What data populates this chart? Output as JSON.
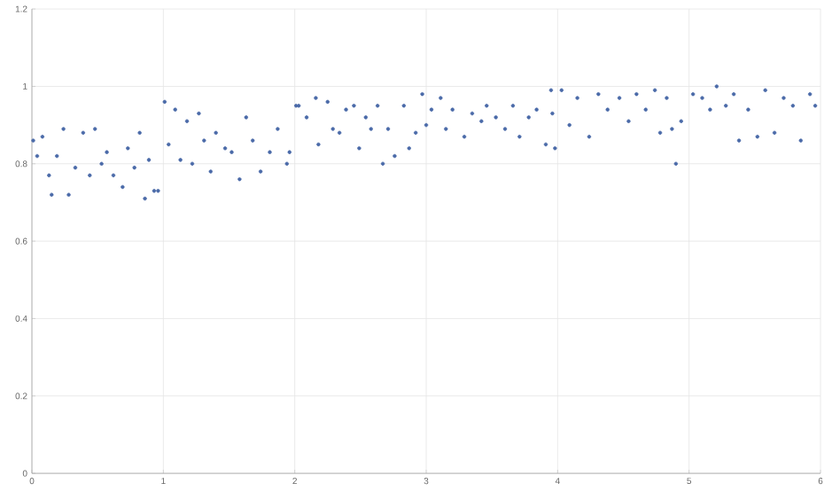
{
  "chart_data": {
    "type": "scatter",
    "color": "#4a6aa8",
    "grid": true,
    "xlim": [
      0,
      6
    ],
    "xticks": [
      0,
      1,
      2,
      3,
      4,
      5,
      6
    ],
    "ylim": [
      0,
      1.2
    ],
    "yticks": [
      0,
      0.2,
      0.4,
      0.6,
      0.8,
      1,
      1.2
    ],
    "x": [
      0.01,
      0.04,
      0.08,
      0.13,
      0.15,
      0.19,
      0.24,
      0.28,
      0.33,
      0.39,
      0.44,
      0.48,
      0.53,
      0.57,
      0.62,
      0.69,
      0.73,
      0.78,
      0.82,
      0.86,
      0.89,
      0.93,
      0.96,
      1.01,
      1.04,
      1.09,
      1.13,
      1.18,
      1.22,
      1.27,
      1.31,
      1.36,
      1.4,
      1.47,
      1.52,
      1.58,
      1.63,
      1.68,
      1.74,
      1.81,
      1.87,
      1.94,
      1.96,
      2.01,
      2.03,
      2.09,
      2.16,
      2.18,
      2.25,
      2.29,
      2.34,
      2.39,
      2.45,
      2.49,
      2.54,
      2.58,
      2.63,
      2.67,
      2.71,
      2.76,
      2.83,
      2.87,
      2.92,
      2.97,
      3.0,
      3.04,
      3.11,
      3.15,
      3.2,
      3.29,
      3.35,
      3.42,
      3.46,
      3.53,
      3.6,
      3.66,
      3.71,
      3.78,
      3.84,
      3.91,
      3.95,
      3.96,
      3.98,
      4.03,
      4.09,
      4.15,
      4.24,
      4.31,
      4.38,
      4.47,
      4.54,
      4.6,
      4.67,
      4.74,
      4.78,
      4.83,
      4.87,
      4.9,
      4.94,
      5.03,
      5.1,
      5.16,
      5.21,
      5.28,
      5.34,
      5.38,
      5.45,
      5.52,
      5.58,
      5.65,
      5.72,
      5.79,
      5.85,
      5.92,
      5.96
    ],
    "values": [
      0.86,
      0.82,
      0.87,
      0.77,
      0.72,
      0.82,
      0.89,
      0.72,
      0.79,
      0.88,
      0.77,
      0.89,
      0.8,
      0.83,
      0.77,
      0.74,
      0.84,
      0.79,
      0.88,
      0.71,
      0.81,
      0.73,
      0.73,
      0.96,
      0.85,
      0.94,
      0.81,
      0.91,
      0.8,
      0.93,
      0.86,
      0.78,
      0.88,
      0.84,
      0.83,
      0.76,
      0.92,
      0.86,
      0.78,
      0.83,
      0.89,
      0.8,
      0.83,
      0.95,
      0.95,
      0.92,
      0.97,
      0.85,
      0.96,
      0.89,
      0.88,
      0.94,
      0.95,
      0.84,
      0.92,
      0.89,
      0.95,
      0.8,
      0.89,
      0.82,
      0.95,
      0.84,
      0.88,
      0.98,
      0.9,
      0.94,
      0.97,
      0.89,
      0.94,
      0.87,
      0.93,
      0.91,
      0.95,
      0.92,
      0.89,
      0.95,
      0.87,
      0.92,
      0.94,
      0.85,
      0.99,
      0.93,
      0.84,
      0.99,
      0.9,
      0.97,
      0.87,
      0.98,
      0.94,
      0.97,
      0.91,
      0.98,
      0.94,
      0.99,
      0.88,
      0.97,
      0.89,
      0.8,
      0.91,
      0.98,
      0.97,
      0.94,
      1.0,
      0.95,
      0.98,
      0.86,
      0.94,
      0.87,
      0.99,
      0.88,
      0.97,
      0.95,
      0.86,
      0.98,
      0.95
    ]
  }
}
